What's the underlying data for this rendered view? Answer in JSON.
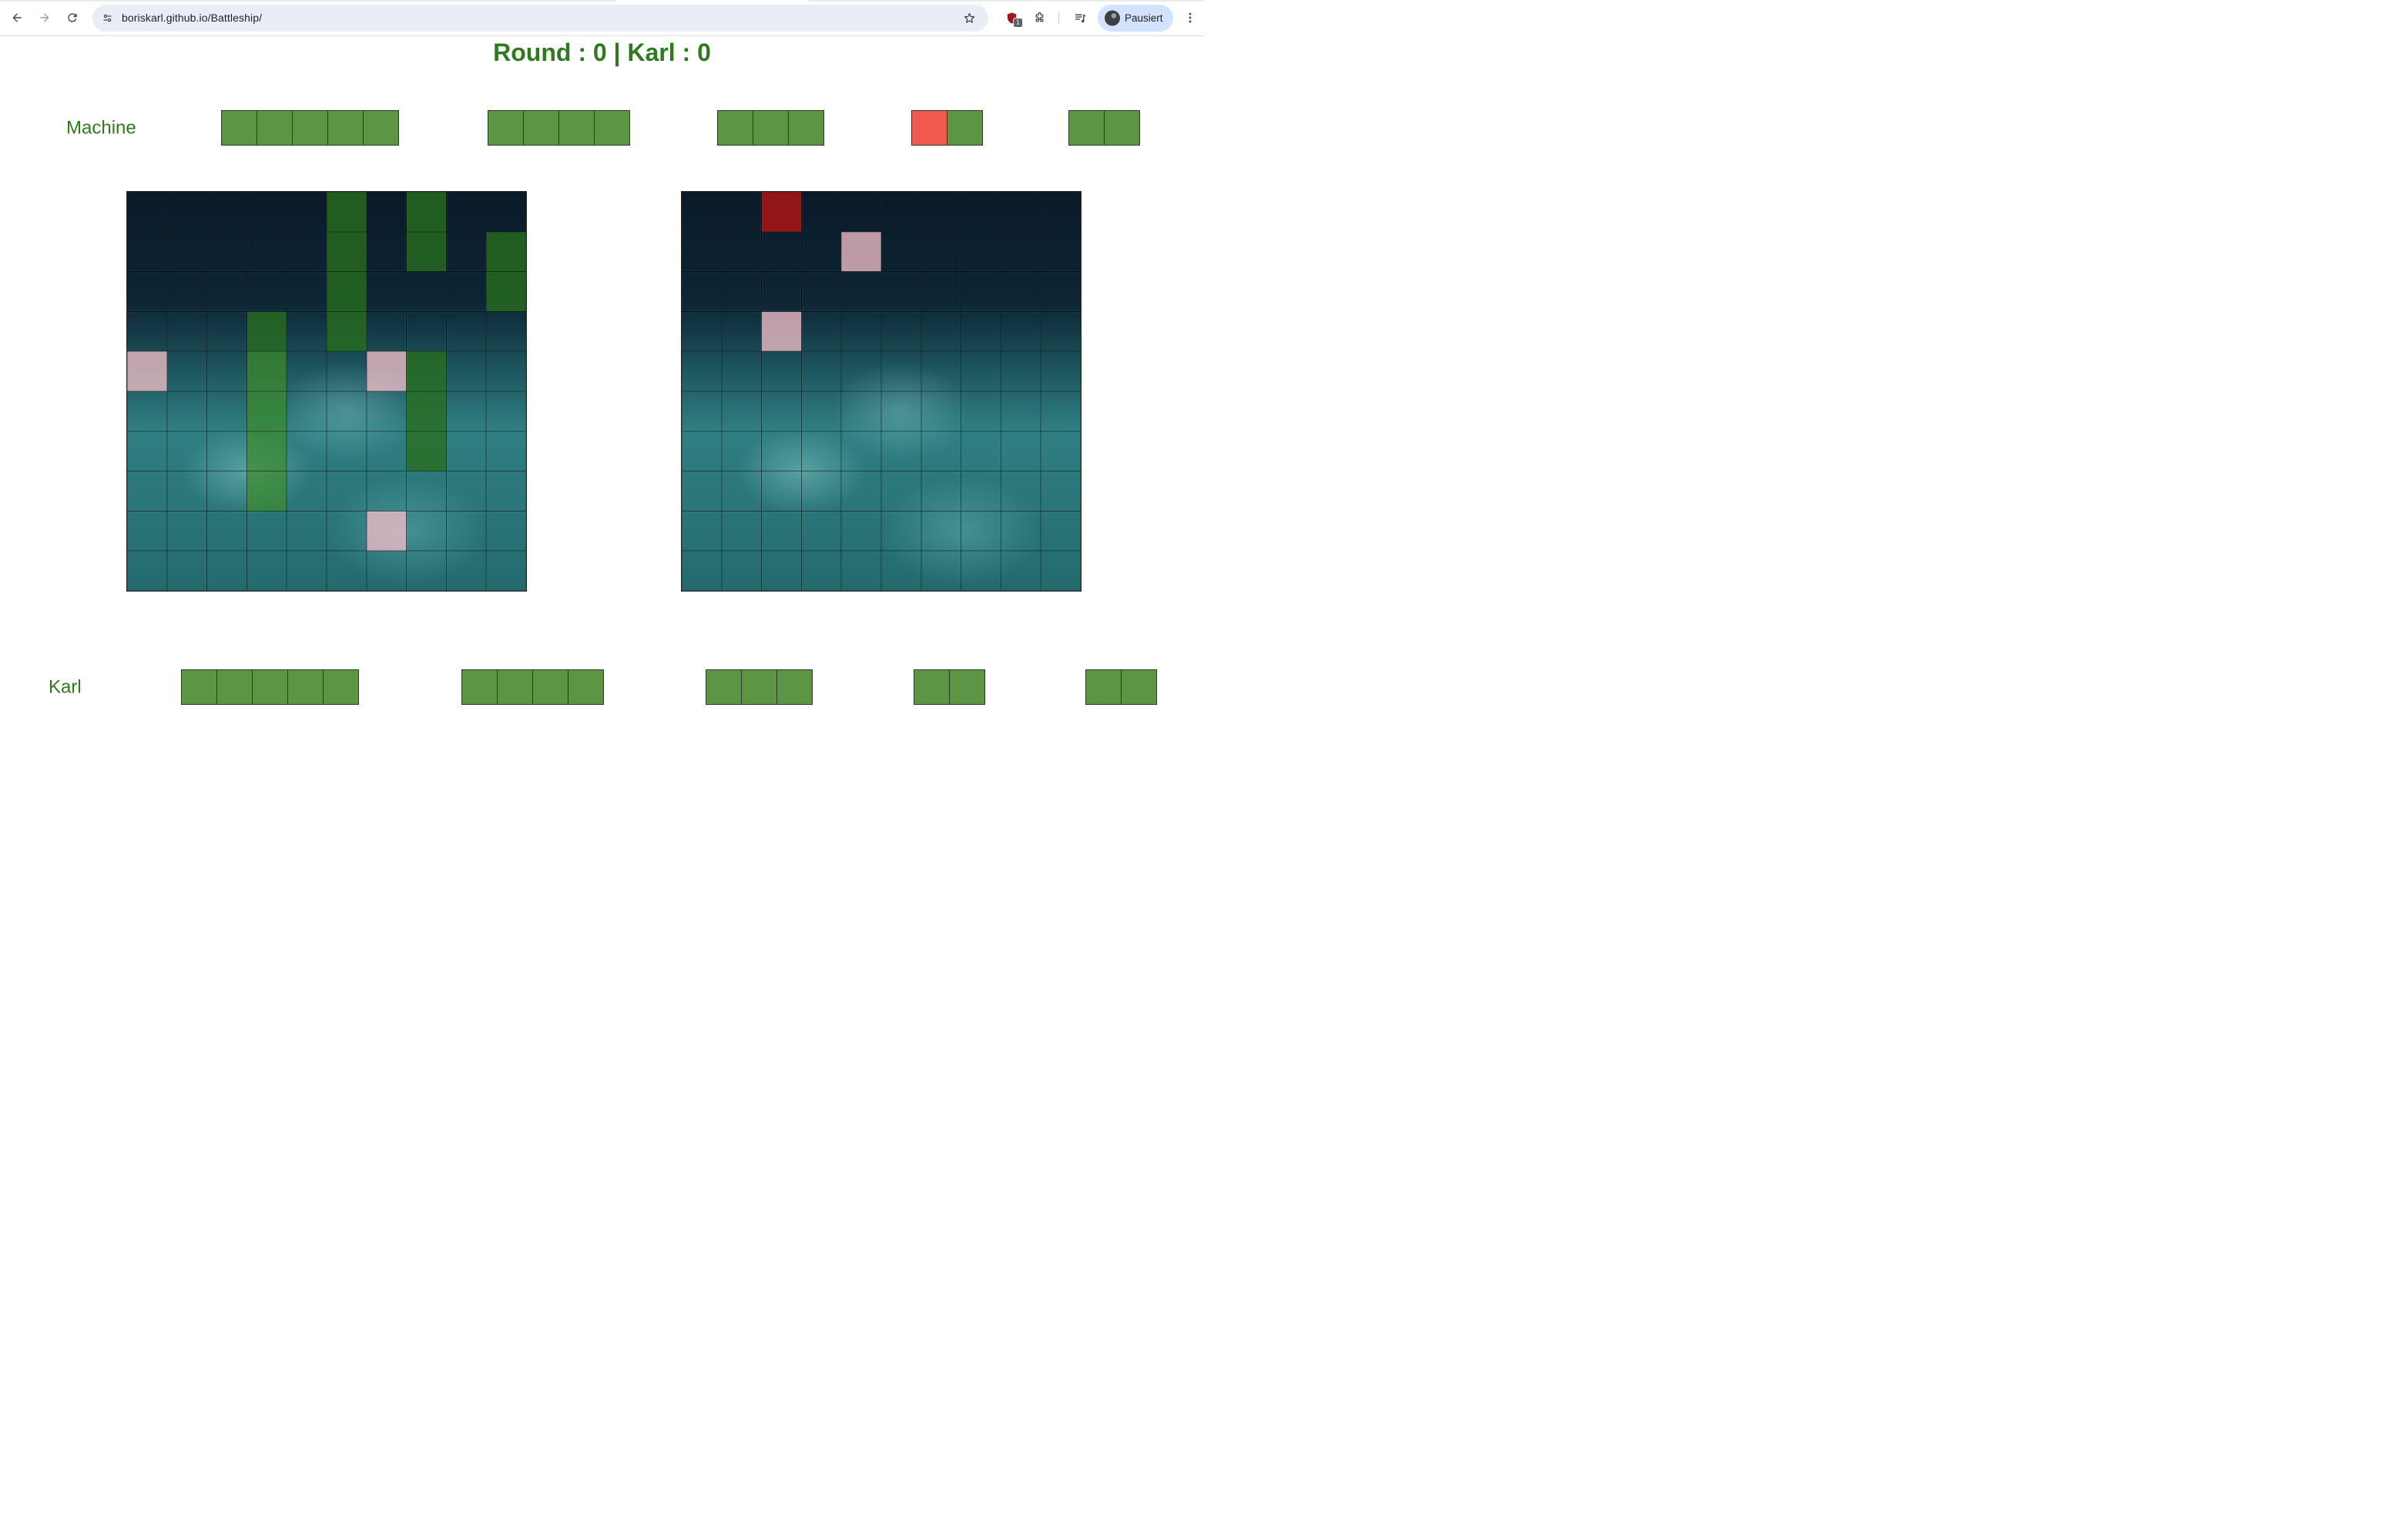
{
  "browser": {
    "url": "boriskarl.github.io/Battleship/",
    "profile_name": "Pausiert",
    "extension_badge": "1"
  },
  "game": {
    "title": "Round : 0 | Karl : 0",
    "machine": {
      "label": "Machine",
      "ships": [
        {
          "length": 5,
          "hits": []
        },
        {
          "length": 4,
          "hits": []
        },
        {
          "length": 3,
          "hits": []
        },
        {
          "length": 2,
          "hits": [
            0
          ]
        },
        {
          "length": 2,
          "hits": []
        }
      ]
    },
    "karl": {
      "label": "Karl",
      "ships": [
        {
          "length": 5,
          "hits": []
        },
        {
          "length": 4,
          "hits": []
        },
        {
          "length": 3,
          "hits": []
        },
        {
          "length": 2,
          "hits": []
        },
        {
          "length": 2,
          "hits": []
        }
      ]
    },
    "left_board": {
      "ship_cells": [
        [
          0,
          5
        ],
        [
          1,
          5
        ],
        [
          2,
          5
        ],
        [
          3,
          5
        ],
        [
          0,
          7
        ],
        [
          1,
          7
        ],
        [
          1,
          9
        ],
        [
          2,
          9
        ],
        [
          3,
          3
        ],
        [
          4,
          3
        ],
        [
          5,
          3
        ],
        [
          6,
          3
        ],
        [
          7,
          3
        ],
        [
          4,
          7
        ],
        [
          5,
          7
        ],
        [
          6,
          7
        ]
      ],
      "miss_cells": [
        [
          4,
          0
        ],
        [
          4,
          6
        ],
        [
          8,
          6
        ]
      ],
      "hit_cells": []
    },
    "right_board": {
      "ship_cells": [],
      "miss_cells": [
        [
          1,
          4
        ],
        [
          3,
          2
        ]
      ],
      "hit_cells": [
        [
          0,
          2
        ]
      ]
    }
  }
}
